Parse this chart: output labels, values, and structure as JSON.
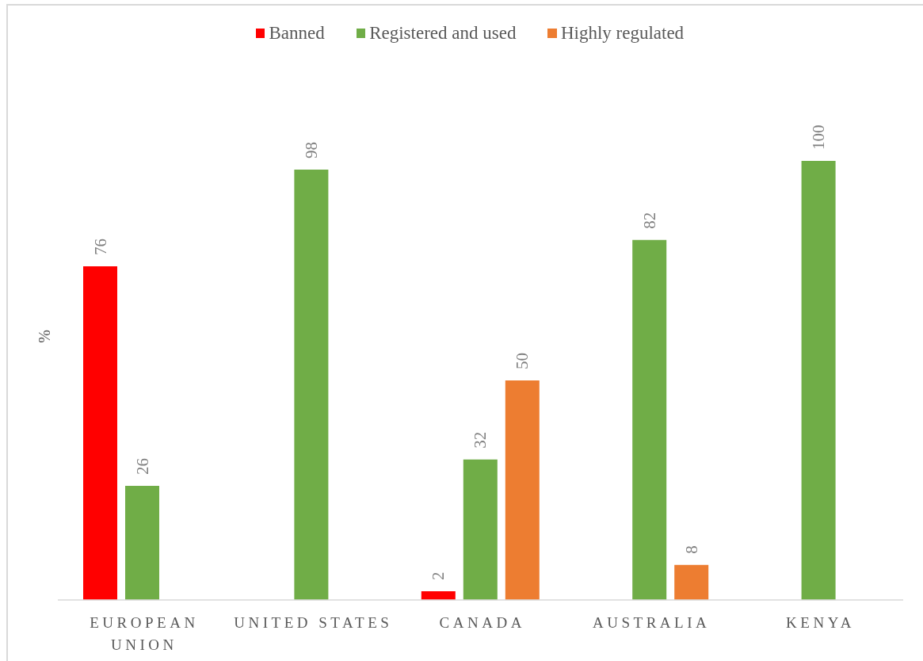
{
  "chart_data": {
    "type": "bar",
    "categories": [
      "EUROPEAN UNION",
      "UNITED STATES",
      "CANADA",
      "AUSTRALIA",
      "KENYA"
    ],
    "series": [
      {
        "name": "Banned",
        "color": "#ff0000",
        "values": [
          76,
          null,
          2,
          null,
          null
        ]
      },
      {
        "name": "Registered and used",
        "color": "#70ad47",
        "values": [
          26,
          98,
          32,
          82,
          100
        ]
      },
      {
        "name": "Highly regulated",
        "color": "#ed7d31",
        "values": [
          null,
          null,
          50,
          8,
          null
        ]
      }
    ],
    "ylabel": "%",
    "data_labels": true,
    "legend": "top",
    "tick_labels": "x"
  }
}
